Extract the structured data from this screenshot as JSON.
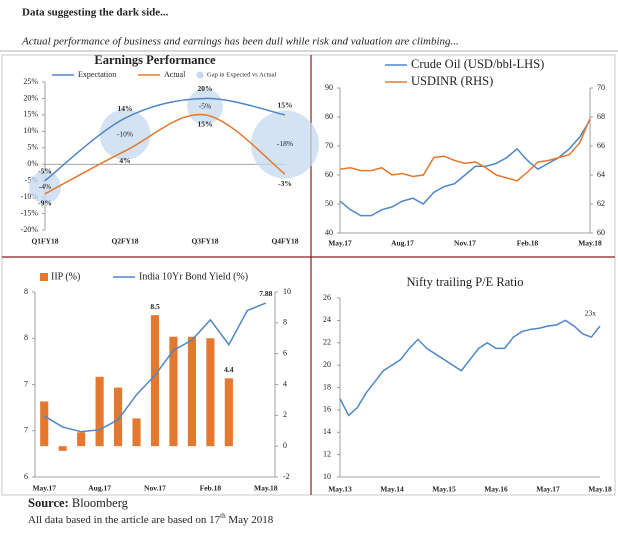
{
  "header": {
    "title": "Data suggesting the dark side...",
    "subtitle": "Actual performance of business and earnings has been dull while risk and valuation are climbing..."
  },
  "chart_data": [
    {
      "type": "line",
      "title": "Earnings Performance",
      "smooth": true,
      "categories": [
        "Q1FY18",
        "Q2FY18",
        "Q3FY18",
        "Q4FY18"
      ],
      "series": [
        {
          "name": "Expectation",
          "color": "#4f86c6",
          "values": [
            -5,
            14,
            20,
            15
          ],
          "value_labels": [
            "-5%",
            "14%",
            "20%",
            "15%"
          ]
        },
        {
          "name": "Actual",
          "color": "#e4782f",
          "values": [
            -9,
            4,
            15,
            -3
          ],
          "value_labels": [
            "-9%",
            "4%",
            "15%",
            "-3%"
          ]
        },
        {
          "name": "Gap in Expected vs Actual",
          "type": "bubble",
          "color": "#c6d9f0",
          "values": [
            -4,
            -10,
            -5,
            -18
          ],
          "value_labels": [
            "-4%",
            "-10%",
            "-5%",
            "-18%"
          ]
        }
      ],
      "ylim": [
        -20,
        25
      ],
      "yticks": [
        {
          "value": -20,
          "label": "-20%"
        },
        {
          "value": -15,
          "label": "-15%"
        },
        {
          "value": -10,
          "label": "-10%"
        },
        {
          "value": -5,
          "label": "-5%"
        },
        {
          "value": 0,
          "label": "0%"
        },
        {
          "value": 5,
          "label": "5%"
        },
        {
          "value": 10,
          "label": "10%"
        },
        {
          "value": 15,
          "label": "15%"
        },
        {
          "value": 20,
          "label": "20%"
        },
        {
          "value": 25,
          "label": "25%"
        }
      ]
    },
    {
      "type": "line",
      "categories": [
        "May.17",
        null,
        null,
        null,
        null,
        null,
        "Aug.17",
        null,
        null,
        null,
        null,
        null,
        "Nov.17",
        null,
        null,
        null,
        null,
        null,
        "Feb.18",
        null,
        null,
        null,
        null,
        null,
        "May.18"
      ],
      "series": [
        {
          "name": "Crude Oil (USD/bbl-LHS)",
          "color": "#4f86c6",
          "values": [
            51,
            48,
            46,
            46,
            48,
            49,
            51,
            52,
            50,
            54,
            56,
            57,
            60,
            63,
            63,
            64,
            66,
            69,
            65,
            62,
            64,
            66,
            69,
            73,
            79
          ]
        },
        {
          "name": "USDINR (RHS)",
          "color": "#e4782f",
          "axis": "y2",
          "values": [
            64.4,
            64.5,
            64.3,
            64.3,
            64.5,
            64.0,
            64.1,
            63.9,
            64.0,
            65.2,
            65.3,
            65.0,
            64.8,
            64.9,
            64.5,
            64.0,
            63.8,
            63.6,
            64.2,
            64.9,
            65.0,
            65.2,
            65.4,
            66.2,
            67.9
          ]
        }
      ],
      "ylim": [
        40,
        90
      ],
      "yticks": [
        40,
        50,
        60,
        70,
        80,
        90
      ],
      "y2lim": [
        60,
        70
      ],
      "y2ticks": [
        60,
        62,
        64,
        66,
        68,
        70
      ]
    },
    {
      "type": "bar",
      "categories": [
        "May.17",
        null,
        null,
        "Aug.17",
        null,
        null,
        "Nov.17",
        null,
        null,
        "Feb.18",
        null,
        null,
        "May.18"
      ],
      "series": [
        {
          "name": "IIP (%)",
          "type": "bar",
          "axis": "y2",
          "color": "#e4782f",
          "values": [
            2.9,
            -0.3,
            0.9,
            4.5,
            3.8,
            1.8,
            8.5,
            7.1,
            7.1,
            7.0,
            4.4,
            null,
            null
          ],
          "value_labels": [
            null,
            null,
            null,
            null,
            null,
            null,
            "8.5",
            null,
            null,
            null,
            "4.4",
            null,
            null
          ]
        },
        {
          "name": "India 10Yr Bond Yield (%)",
          "type": "line",
          "color": "#4f86c6",
          "values": [
            6.66,
            6.54,
            6.49,
            6.51,
            6.62,
            6.89,
            7.1,
            7.37,
            7.48,
            7.7,
            7.43,
            7.8,
            7.88
          ],
          "value_labels": [
            null,
            null,
            null,
            null,
            null,
            null,
            null,
            null,
            null,
            null,
            null,
            null,
            "7.88"
          ]
        }
      ],
      "ylim": [
        6,
        8
      ],
      "yticks": [
        {
          "value": 6,
          "label": "6"
        },
        {
          "value": 6.5,
          "label": "7"
        },
        {
          "value": 7,
          "label": "7"
        },
        {
          "value": 7.5,
          "label": "8"
        },
        {
          "value": 8,
          "label": "8"
        }
      ],
      "y2lim": [
        -2,
        10
      ],
      "y2ticks": [
        -2,
        0,
        2,
        4,
        6,
        8,
        10
      ]
    },
    {
      "type": "line",
      "title": "Nifty trailing P/E Ratio",
      "categories": [
        "May.13",
        null,
        null,
        null,
        null,
        null,
        "May.14",
        null,
        null,
        null,
        null,
        null,
        "May.15",
        null,
        null,
        null,
        null,
        null,
        "May.16",
        null,
        null,
        null,
        null,
        null,
        "May.17",
        null,
        null,
        null,
        null,
        null,
        "May.18"
      ],
      "series": [
        {
          "name": "Nifty trailing P/E",
          "color": "#4f86c6",
          "values": [
            17,
            15.5,
            16.2,
            17.5,
            18.5,
            19.5,
            20,
            20.5,
            21.5,
            22.3,
            21.5,
            21,
            20.5,
            20,
            19.5,
            20.5,
            21.5,
            22,
            21.5,
            21.5,
            22.5,
            23,
            23.2,
            23.3,
            23.5,
            23.6,
            24,
            23.5,
            22.8,
            22.5,
            23.5
          ]
        }
      ],
      "annotation": "23x",
      "ylim": [
        10,
        26
      ],
      "yticks": [
        10,
        12,
        14,
        16,
        18,
        20,
        22,
        24,
        26
      ]
    }
  ],
  "footer": {
    "source_label": "Source:",
    "source": "Bloomberg",
    "note": "All data based in the article are based on 17",
    "note_sup": "th",
    "note_end": " May 2018"
  }
}
